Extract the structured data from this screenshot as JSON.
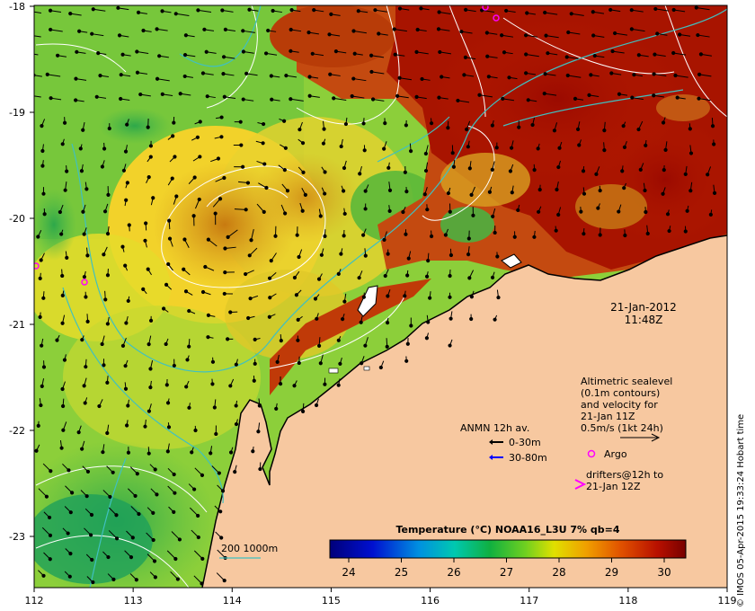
{
  "map": {
    "lon_ticks": [
      "112",
      "113",
      "114",
      "115",
      "116",
      "117",
      "118",
      "119"
    ],
    "lat_ticks": [
      "-18",
      "-19",
      "-20",
      "-21",
      "-22",
      "-23"
    ],
    "date": "21-Jan-2012",
    "time": "11:48Z",
    "credit": "© IMOS 05-Apr-2015 19:33:24 Hobart time"
  },
  "info": {
    "lines": [
      "Altimetric sealevel",
      "(0.1m contours)",
      "and velocity for",
      "21-Jan 11Z",
      "0.5m/s (1kt 24h)"
    ]
  },
  "legend": {
    "anmn_title": "ANMN 12h av.",
    "depth_shallow": "0-30m",
    "depth_deep": "30-80m",
    "argo": "Argo",
    "drifters_line1": "drifters@12h to",
    "drifters_line2": "21-Jan 12Z",
    "isobath": "200  1000m",
    "colorbar_title": "Temperature (°C) NOAA16_L3U 7% qb=4",
    "colorbar_ticks": [
      "24",
      "25",
      "26",
      "27",
      "28",
      "29",
      "30"
    ],
    "colors": {
      "shallow_arrow": "#000000",
      "deep_arrow": "#0000ff",
      "argo": "#ff00ff",
      "land": "#f7c8a0",
      "isobath": "#40c0c0"
    }
  }
}
